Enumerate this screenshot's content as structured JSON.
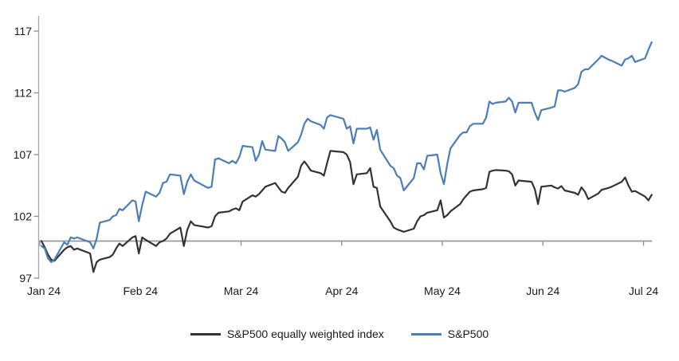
{
  "chart_data": {
    "type": "line",
    "title": "",
    "x_axis": {
      "tick_labels": [
        "Jan 24",
        "Feb 24",
        "Mar 24",
        "Apr 24",
        "May 24",
        "Jun 24",
        "Jul 24"
      ]
    },
    "y_axis": {
      "ticks": [
        97,
        102,
        107,
        112,
        117
      ],
      "min": 97,
      "max": 118,
      "baseline_value": 100
    },
    "grid": "off",
    "legend_position": "bottom-center",
    "legend": {
      "items": [
        {
          "label": "S&P500 equally weighted index",
          "color": "#333333"
        },
        {
          "label": "S&P500",
          "color": "#4a7ebb"
        }
      ]
    },
    "colors": {
      "axis": "#a6a6a6",
      "tick": "#8c8c8c",
      "baseline": "#999999",
      "label": "#1a1a1a",
      "background": "#ffffff",
      "sp500_line": "#4a7ebb",
      "equal_weight_line": "#333333"
    },
    "series": [
      {
        "name": "S&P500 equally weighted index",
        "color": "#333333",
        "points": [
          [
            "Jan 1",
            100.0
          ],
          [
            "Jan 2",
            99.5
          ],
          [
            "Jan 3",
            98.9
          ],
          [
            "Jan 4",
            98.5
          ],
          [
            "Jan 5",
            98.4
          ],
          [
            "Jan 8",
            99.3
          ],
          [
            "Jan 9",
            99.5
          ],
          [
            "Jan 10",
            99.6
          ],
          [
            "Jan 11",
            99.3
          ],
          [
            "Jan 12",
            99.4
          ],
          [
            "Jan 16",
            99.0
          ],
          [
            "Jan 17",
            97.5
          ],
          [
            "Jan 18",
            98.3
          ],
          [
            "Jan 19",
            98.5
          ],
          [
            "Jan 22",
            98.7
          ],
          [
            "Jan 23",
            98.9
          ],
          [
            "Jan 24",
            99.4
          ],
          [
            "Jan 25",
            99.8
          ],
          [
            "Jan 26",
            99.6
          ],
          [
            "Jan 29",
            100.3
          ],
          [
            "Jan 30",
            100.4
          ],
          [
            "Jan 31",
            99.0
          ],
          [
            "Feb 1",
            100.3
          ],
          [
            "Feb 2",
            100.1
          ],
          [
            "Feb 5",
            99.6
          ],
          [
            "Feb 6",
            99.9
          ],
          [
            "Feb 7",
            100.0
          ],
          [
            "Feb 8",
            100.2
          ],
          [
            "Feb 9",
            100.6
          ],
          [
            "Feb 12",
            101.1
          ],
          [
            "Feb 13",
            99.6
          ],
          [
            "Feb 14",
            100.9
          ],
          [
            "Feb 15",
            101.6
          ],
          [
            "Feb 16",
            101.3
          ],
          [
            "Feb 20",
            101.1
          ],
          [
            "Feb 21",
            101.2
          ],
          [
            "Feb 22",
            102.0
          ],
          [
            "Feb 23",
            102.3
          ],
          [
            "Feb 26",
            102.4
          ],
          [
            "Feb 27",
            102.55
          ],
          [
            "Feb 28",
            102.65
          ],
          [
            "Feb 29",
            102.5
          ],
          [
            "Mar 1",
            103.2
          ],
          [
            "Mar 4",
            103.7
          ],
          [
            "Mar 5",
            103.6
          ],
          [
            "Mar 6",
            103.8
          ],
          [
            "Mar 7",
            104.1
          ],
          [
            "Mar 8",
            104.4
          ],
          [
            "Mar 11",
            104.7
          ],
          [
            "Mar 12",
            104.35
          ],
          [
            "Mar 13",
            104.0
          ],
          [
            "Mar 14",
            103.9
          ],
          [
            "Mar 15",
            104.3
          ],
          [
            "Mar 18",
            105.2
          ],
          [
            "Mar 19",
            106.1
          ],
          [
            "Mar 20",
            106.45
          ],
          [
            "Mar 21",
            106.1
          ],
          [
            "Mar 22",
            105.7
          ],
          [
            "Mar 25",
            105.5
          ],
          [
            "Mar 26",
            105.3
          ],
          [
            "Mar 27",
            106.3
          ],
          [
            "Mar 28",
            107.3
          ],
          [
            "Apr 1",
            107.2
          ],
          [
            "Apr 2",
            107.0
          ],
          [
            "Apr 3",
            106.4
          ],
          [
            "Apr 4",
            104.6
          ],
          [
            "Apr 5",
            105.4
          ],
          [
            "Apr 8",
            105.5
          ],
          [
            "Apr 9",
            105.9
          ],
          [
            "Apr 10",
            104.4
          ],
          [
            "Apr 11",
            104.3
          ],
          [
            "Apr 12",
            102.8
          ],
          [
            "Apr 15",
            101.6
          ],
          [
            "Apr 16",
            101.1
          ],
          [
            "Apr 17",
            100.95
          ],
          [
            "Apr 18",
            100.85
          ],
          [
            "Apr 19",
            100.75
          ],
          [
            "Apr 22",
            101.0
          ],
          [
            "Apr 23",
            101.6
          ],
          [
            "Apr 24",
            102.0
          ],
          [
            "Apr 25",
            102.1
          ],
          [
            "Apr 26",
            102.3
          ],
          [
            "Apr 29",
            102.5
          ],
          [
            "Apr 30",
            103.3
          ],
          [
            "May 1",
            101.9
          ],
          [
            "May 2",
            102.1
          ],
          [
            "May 3",
            102.4
          ],
          [
            "May 6",
            103.0
          ],
          [
            "May 7",
            103.4
          ],
          [
            "May 8",
            103.7
          ],
          [
            "May 9",
            104.0
          ],
          [
            "May 10",
            104.1
          ],
          [
            "May 13",
            104.2
          ],
          [
            "May 14",
            104.3
          ],
          [
            "May 15",
            105.6
          ],
          [
            "May 16",
            105.7
          ],
          [
            "May 17",
            105.75
          ],
          [
            "May 20",
            105.7
          ],
          [
            "May 21",
            105.65
          ],
          [
            "May 22",
            105.4
          ],
          [
            "May 23",
            104.5
          ],
          [
            "May 24",
            104.9
          ],
          [
            "May 28",
            104.8
          ],
          [
            "May 29",
            104.2
          ],
          [
            "May 30",
            103.0
          ],
          [
            "May 31",
            104.4
          ],
          [
            "Jun 3",
            104.5
          ],
          [
            "Jun 4",
            104.35
          ],
          [
            "Jun 5",
            104.25
          ],
          [
            "Jun 6",
            104.45
          ],
          [
            "Jun 7",
            104.1
          ],
          [
            "Jun 10",
            103.9
          ],
          [
            "Jun 11",
            103.75
          ],
          [
            "Jun 12",
            104.35
          ],
          [
            "Jun 13",
            104.0
          ],
          [
            "Jun 14",
            103.4
          ],
          [
            "Jun 17",
            103.85
          ],
          [
            "Jun 18",
            104.15
          ],
          [
            "Jun 20",
            104.3
          ],
          [
            "Jun 21",
            104.4
          ],
          [
            "Jun 24",
            104.8
          ],
          [
            "Jun 25",
            105.15
          ],
          [
            "Jun 26",
            104.5
          ],
          [
            "Jun 27",
            104.0
          ],
          [
            "Jun 28",
            104.05
          ],
          [
            "Jul 1",
            103.6
          ],
          [
            "Jul 2",
            103.3
          ],
          [
            "Jul 3",
            103.75
          ]
        ]
      },
      {
        "name": "S&P500",
        "color": "#4a7ebb",
        "points": [
          [
            "Jan 1",
            99.6
          ],
          [
            "Jan 2",
            99.4
          ],
          [
            "Jan 3",
            98.6
          ],
          [
            "Jan 4",
            98.3
          ],
          [
            "Jan 5",
            98.5
          ],
          [
            "Jan 8",
            99.9
          ],
          [
            "Jan 9",
            99.7
          ],
          [
            "Jan 10",
            100.3
          ],
          [
            "Jan 11",
            100.2
          ],
          [
            "Jan 12",
            100.3
          ],
          [
            "Jan 16",
            99.9
          ],
          [
            "Jan 17",
            99.4
          ],
          [
            "Jan 18",
            100.2
          ],
          [
            "Jan 19",
            101.5
          ],
          [
            "Jan 22",
            101.7
          ],
          [
            "Jan 23",
            102.0
          ],
          [
            "Jan 24",
            102.1
          ],
          [
            "Jan 25",
            102.6
          ],
          [
            "Jan 26",
            102.5
          ],
          [
            "Jan 29",
            103.3
          ],
          [
            "Jan 30",
            103.2
          ],
          [
            "Jan 31",
            101.6
          ],
          [
            "Feb 1",
            102.9
          ],
          [
            "Feb 2",
            104.0
          ],
          [
            "Feb 5",
            103.6
          ],
          [
            "Feb 6",
            103.9
          ],
          [
            "Feb 7",
            104.7
          ],
          [
            "Feb 8",
            104.8
          ],
          [
            "Feb 9",
            105.4
          ],
          [
            "Feb 12",
            105.3
          ],
          [
            "Feb 13",
            103.8
          ],
          [
            "Feb 14",
            104.8
          ],
          [
            "Feb 15",
            105.4
          ],
          [
            "Feb 16",
            104.9
          ],
          [
            "Feb 20",
            104.3
          ],
          [
            "Feb 21",
            104.4
          ],
          [
            "Feb 22",
            106.6
          ],
          [
            "Feb 23",
            106.7
          ],
          [
            "Feb 26",
            106.3
          ],
          [
            "Feb 27",
            106.5
          ],
          [
            "Feb 28",
            106.3
          ],
          [
            "Feb 29",
            106.8
          ],
          [
            "Mar 1",
            107.7
          ],
          [
            "Mar 4",
            107.6
          ],
          [
            "Mar 5",
            106.5
          ],
          [
            "Mar 6",
            107.0
          ],
          [
            "Mar 7",
            108.1
          ],
          [
            "Mar 8",
            107.4
          ],
          [
            "Mar 11",
            107.3
          ],
          [
            "Mar 12",
            108.5
          ],
          [
            "Mar 13",
            108.3
          ],
          [
            "Mar 14",
            108.0
          ],
          [
            "Mar 15",
            107.3
          ],
          [
            "Mar 18",
            108.0
          ],
          [
            "Mar 19",
            108.6
          ],
          [
            "Mar 20",
            109.5
          ],
          [
            "Mar 21",
            109.9
          ],
          [
            "Mar 22",
            109.7
          ],
          [
            "Mar 25",
            109.4
          ],
          [
            "Mar 26",
            109.1
          ],
          [
            "Mar 27",
            110.0
          ],
          [
            "Mar 28",
            110.2
          ],
          [
            "Apr 1",
            109.9
          ],
          [
            "Apr 2",
            109.1
          ],
          [
            "Apr 3",
            109.3
          ],
          [
            "Apr 4",
            107.9
          ],
          [
            "Apr 5",
            109.1
          ],
          [
            "Apr 8",
            109.1
          ],
          [
            "Apr 9",
            109.2
          ],
          [
            "Apr 10",
            108.2
          ],
          [
            "Apr 11",
            109.0
          ],
          [
            "Apr 12",
            107.4
          ],
          [
            "Apr 15",
            106.1
          ],
          [
            "Apr 16",
            105.9
          ],
          [
            "Apr 17",
            105.3
          ],
          [
            "Apr 18",
            105.1
          ],
          [
            "Apr 19",
            104.1
          ],
          [
            "Apr 22",
            105.1
          ],
          [
            "Apr 23",
            106.3
          ],
          [
            "Apr 24",
            106.3
          ],
          [
            "Apr 25",
            105.8
          ],
          [
            "Apr 26",
            106.9
          ],
          [
            "Apr 29",
            107.0
          ],
          [
            "Apr 30",
            105.5
          ],
          [
            "May 1",
            104.6
          ],
          [
            "May 2",
            106.2
          ],
          [
            "May 3",
            107.5
          ],
          [
            "May 6",
            108.6
          ],
          [
            "May 7",
            108.8
          ],
          [
            "May 8",
            108.8
          ],
          [
            "May 9",
            109.3
          ],
          [
            "May 10",
            109.5
          ],
          [
            "May 13",
            109.5
          ],
          [
            "May 14",
            110.0
          ],
          [
            "May 15",
            111.3
          ],
          [
            "May 16",
            111.1
          ],
          [
            "May 17",
            111.2
          ],
          [
            "May 20",
            111.3
          ],
          [
            "May 21",
            111.6
          ],
          [
            "May 22",
            111.3
          ],
          [
            "May 23",
            110.4
          ],
          [
            "May 24",
            111.2
          ],
          [
            "May 28",
            111.2
          ],
          [
            "May 29",
            110.4
          ],
          [
            "May 30",
            109.8
          ],
          [
            "May 31",
            110.6
          ],
          [
            "Jun 3",
            110.8
          ],
          [
            "Jun 4",
            110.9
          ],
          [
            "Jun 5",
            112.2
          ],
          [
            "Jun 6",
            112.2
          ],
          [
            "Jun 7",
            112.1
          ],
          [
            "Jun 10",
            112.4
          ],
          [
            "Jun 11",
            112.7
          ],
          [
            "Jun 12",
            113.7
          ],
          [
            "Jun 13",
            113.9
          ],
          [
            "Jun 14",
            113.9
          ],
          [
            "Jun 17",
            114.7
          ],
          [
            "Jun 18",
            115.0
          ],
          [
            "Jun 20",
            114.7
          ],
          [
            "Jun 21",
            114.6
          ],
          [
            "Jun 24",
            114.2
          ],
          [
            "Jun 25",
            114.7
          ],
          [
            "Jun 26",
            114.8
          ],
          [
            "Jun 27",
            115.0
          ],
          [
            "Jun 28",
            114.5
          ],
          [
            "Jul 1",
            114.8
          ],
          [
            "Jul 2",
            115.5
          ],
          [
            "Jul 3",
            116.1
          ]
        ]
      }
    ]
  }
}
